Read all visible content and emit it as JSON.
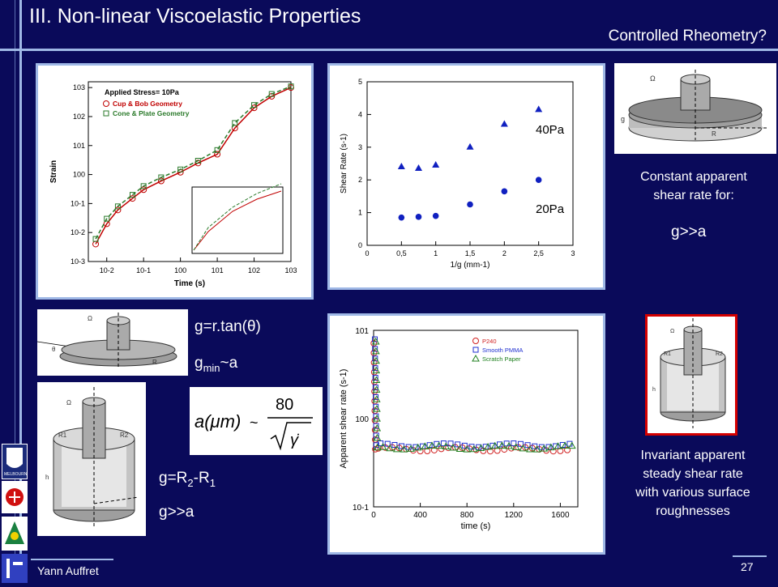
{
  "slide": {
    "title": "III. Non-linear Viscoelastic  Properties",
    "subtitle": "Controlled Rheometry?",
    "author": "Yann Auffret",
    "page": "27"
  },
  "cone": {
    "eq1": "g=r.tan(θ)",
    "eq2_main": "g",
    "eq2_sub": "min",
    "eq2_rest": "~a"
  },
  "couette": {
    "eq1_a": "g=R",
    "eq1_sub2": "2",
    "eq1_b": "-R",
    "eq1_sub1": "1",
    "eq2": "g>>a"
  },
  "right": {
    "caption1": "Constant apparent shear rate for:",
    "caption1_line1": "Constant apparent",
    "caption1_line2": "shear rate for:",
    "cond": "g>>a",
    "caption2_line1": "Invariant apparent",
    "caption2_line2": "steady shear rate",
    "caption2_line3": "with various surface",
    "caption2_line4": "roughnesses"
  },
  "chart_data": [
    {
      "type": "line",
      "title": "Applied Stress= 10Pa",
      "xlabel": "Time (s)",
      "ylabel": "Strain",
      "xscale": "log",
      "yscale": "log",
      "x_ticks": [
        "10-2",
        "10-1",
        "100",
        "101",
        "102",
        "103"
      ],
      "y_ticks": [
        "10-3",
        "10-2",
        "10-1",
        "100",
        "101",
        "102",
        "103"
      ],
      "series": [
        {
          "name": "Cup & Bob Geometry",
          "color": "#c00000",
          "marker": "circle",
          "x": [
            0.005,
            0.01,
            0.02,
            0.05,
            0.1,
            0.3,
            1,
            3,
            10,
            30,
            100,
            300,
            1000
          ],
          "y": [
            0.004,
            0.02,
            0.06,
            0.15,
            0.3,
            0.6,
            1.2,
            2.5,
            5,
            40,
            200,
            500,
            1000
          ]
        },
        {
          "name": "Cone & Plate Geometry",
          "color": "#2a7a2a",
          "marker": "square",
          "x": [
            0.005,
            0.01,
            0.02,
            0.05,
            0.1,
            0.3,
            1,
            3,
            10,
            30,
            100,
            300,
            1000
          ],
          "y": [
            0.006,
            0.03,
            0.08,
            0.2,
            0.4,
            0.8,
            1.5,
            3,
            7,
            60,
            250,
            600,
            1100
          ]
        }
      ]
    },
    {
      "type": "scatter",
      "xlabel": "1/g (mm-1)",
      "ylabel": "Shear Rate (s-1)",
      "xlim": [
        0,
        3
      ],
      "ylim": [
        0,
        5
      ],
      "series": [
        {
          "name": "40Pa",
          "marker": "triangle",
          "color": "#1020c0",
          "x": [
            0.5,
            0.75,
            1.0,
            1.5,
            2.0,
            2.5
          ],
          "y": [
            2.4,
            2.35,
            2.45,
            3.0,
            3.7,
            4.15
          ]
        },
        {
          "name": "20Pa",
          "marker": "circle",
          "color": "#1020c0",
          "x": [
            0.5,
            0.75,
            1.0,
            1.5,
            2.0,
            2.5
          ],
          "y": [
            0.85,
            0.87,
            0.9,
            1.25,
            1.65,
            2.0
          ]
        }
      ]
    },
    {
      "type": "scatter",
      "xlabel": "time (s)",
      "ylabel": "Apparent shear rate (s-1)",
      "xlim": [
        0,
        1750
      ],
      "yscale": "log",
      "x_ticks": [
        "0",
        "400",
        "800",
        "1200",
        "1600"
      ],
      "y_ticks": [
        "10-1",
        "100",
        "101"
      ],
      "series": [
        {
          "name": "P240",
          "color": "#d02020",
          "marker": "circle",
          "level": 0.45
        },
        {
          "name": "Smooth PMMA",
          "color": "#2030d0",
          "marker": "square",
          "level": 0.5
        },
        {
          "name": "Scratch Paper",
          "color": "#208020",
          "marker": "triangle",
          "level": 0.47
        }
      ]
    }
  ]
}
